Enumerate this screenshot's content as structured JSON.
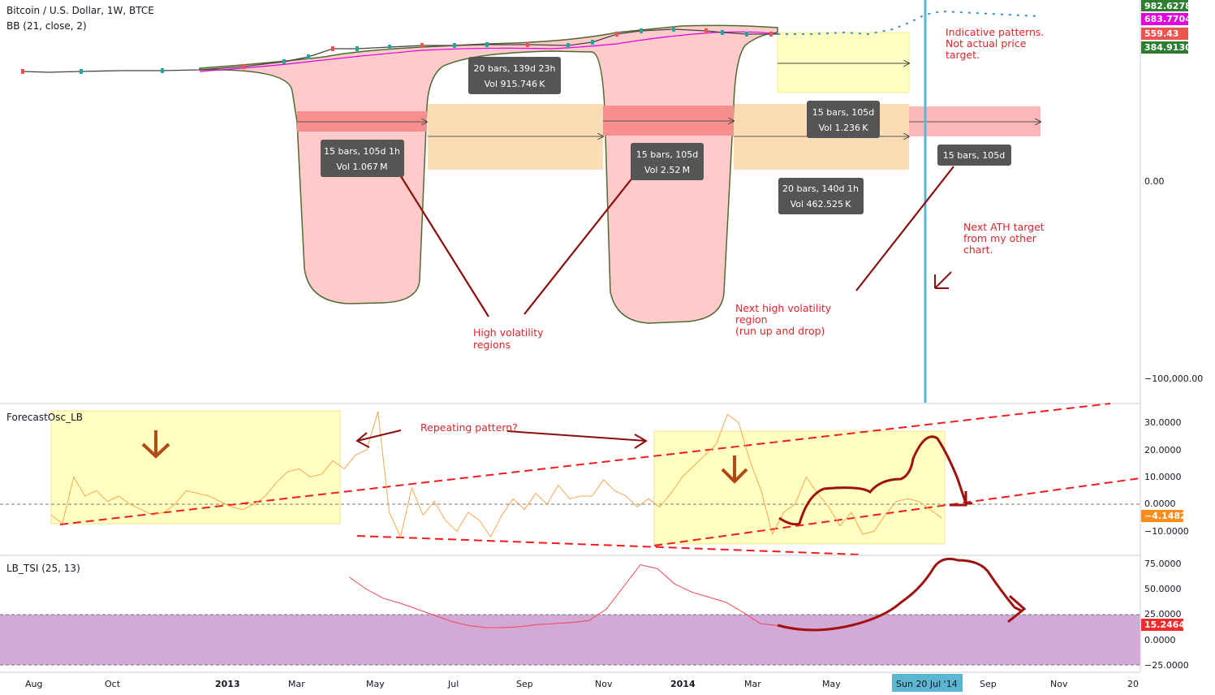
{
  "header": {
    "symbol_title": "Bitcoin / U.S. Dollar, 1W, BTCE",
    "bb_indicator": "BB (21, close, 2)"
  },
  "price_axis": {
    "ticks": [
      "0.00",
      "−100,000.00"
    ],
    "badges": [
      {
        "label": "982.6278",
        "color": "#2e7d32"
      },
      {
        "label": "683.7704",
        "color": "#e000e0"
      },
      {
        "label": "559.43",
        "color": "#ef5350"
      },
      {
        "label": "384.9130",
        "color": "#2e7d32"
      }
    ]
  },
  "info_boxes": [
    {
      "line1": "20 bars, 139d 23h",
      "line2": "Vol 915.746 K"
    },
    {
      "line1": "15 bars, 105d 1h",
      "line2": "Vol 1.067 M"
    },
    {
      "line1": "15 bars, 105d",
      "line2": "Vol 2.52 M"
    },
    {
      "line1": "15 bars, 105d",
      "line2": "Vol 1.236 K"
    },
    {
      "line1": "20 bars, 140d 1h",
      "line2": "Vol 462.525 K"
    },
    {
      "line1": "15 bars, 105d",
      "line2": ""
    }
  ],
  "annotations": {
    "high_vol_line1": "High volatility",
    "high_vol_line2": "regions",
    "next_vol_line1": "Next high volatility",
    "next_vol_line2": "region",
    "next_vol_line3": "(run up and drop)",
    "indicative_line1": "Indicative patterns.",
    "indicative_line2": "Not actual price",
    "indicative_line3": "target.",
    "ath_line1": "Next ATH target",
    "ath_line2": "from my other",
    "ath_line3": "chart.",
    "repeating": "Repeating pattern?"
  },
  "forecast_panel": {
    "title": "ForecastOsc_LB",
    "ticks": [
      "30.0000",
      "20.0000",
      "10.0000",
      "0.0000",
      "−10.0000"
    ],
    "badge": {
      "label": "−4.1482",
      "color": "#ff8c1a"
    }
  },
  "tsi_panel": {
    "title": "LB_TSI (25, 13)",
    "ticks": [
      "75.0000",
      "50.0000",
      "25.0000",
      "0.0000",
      "−25.0000"
    ],
    "badge": {
      "label": "15.2464",
      "color": "#ef2b2b"
    }
  },
  "time_axis": {
    "labels": [
      "Aug",
      "Oct",
      "2013",
      "Mar",
      "May",
      "Jul",
      "Sep",
      "Nov",
      "2014",
      "Mar",
      "May",
      "Sep",
      "Nov",
      "20"
    ],
    "highlight": "Sun 20 Jul '14"
  },
  "chart_data": [
    {
      "type": "line",
      "title": "Bitcoin / U.S. Dollar, 1W, BTCE",
      "indicator": "BB (21, close, 2)",
      "price_labels": [
        982.6278,
        683.7704,
        559.43,
        384.913
      ],
      "ylim_ticks": [
        "0.00",
        "−100,000.00"
      ]
    },
    {
      "type": "line",
      "title": "ForecastOsc_LB",
      "ylim": [
        -15,
        35
      ],
      "last_value": -4.1482,
      "series": [
        {
          "values": [
            -4,
            -7,
            10,
            3,
            5,
            1,
            3,
            0,
            -2,
            -4,
            -3,
            0,
            5,
            4,
            3,
            1,
            -1,
            -2,
            0,
            3,
            8,
            12,
            13,
            10,
            11,
            16,
            13,
            18,
            20,
            34,
            -3,
            -12,
            6,
            -4,
            1,
            -6,
            -10,
            -3,
            -6,
            -12,
            -4,
            2,
            -2,
            4,
            0,
            7,
            2,
            3,
            3,
            9,
            5,
            3,
            -1,
            2,
            -1,
            4,
            10,
            14,
            18,
            22,
            33,
            30,
            16,
            5,
            -11,
            -3,
            0,
            10,
            4,
            -1,
            -8,
            -3,
            -11,
            -10,
            -4,
            1,
            2,
            1,
            -2,
            -5
          ]
        }
      ]
    },
    {
      "type": "line",
      "title": "LB_TSI (25, 13)",
      "ylim": [
        -25,
        80
      ],
      "last_value": 15.2464,
      "series": [
        {
          "values": [
            62,
            50,
            41,
            36,
            30,
            24,
            18,
            14,
            12,
            12,
            13,
            15,
            16,
            17,
            19,
            30,
            52,
            74,
            70,
            55,
            47,
            42,
            37,
            27,
            16,
            14
          ]
        }
      ]
    }
  ]
}
